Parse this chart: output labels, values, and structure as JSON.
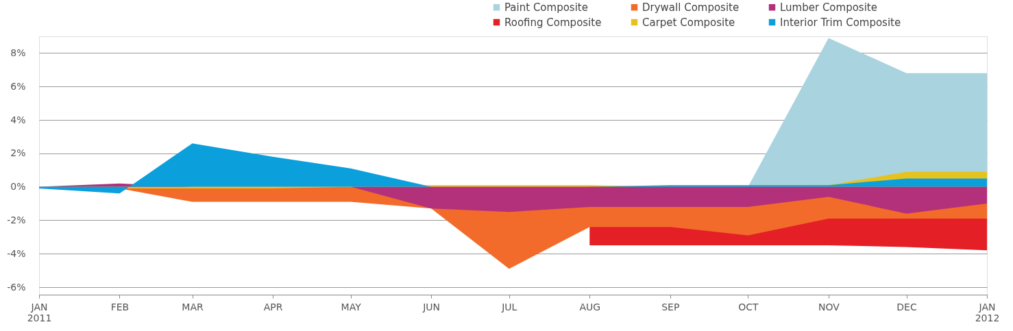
{
  "chart_data": {
    "type": "area",
    "x": [
      "2011-01",
      "2011-02",
      "2011-03",
      "2011-04",
      "2011-05",
      "2011-06",
      "2011-07",
      "2011-08",
      "2011-09",
      "2011-10",
      "2011-11",
      "2011-12",
      "2012-01"
    ],
    "series": [
      {
        "name": "Paint Composite",
        "color": "#a9d3de",
        "values": [
          null,
          null,
          null,
          null,
          null,
          null,
          null,
          null,
          null,
          0,
          8.9,
          6.8,
          6.8
        ]
      },
      {
        "name": "Roofing Composite",
        "color": "#e41f26",
        "values": [
          null,
          null,
          null,
          null,
          null,
          null,
          null,
          -3.5,
          -3.5,
          -3.5,
          -3.5,
          -3.6,
          -3.8
        ]
      },
      {
        "name": "Drywall Composite",
        "color": "#f26b2a",
        "values": [
          -0.1,
          -0.1,
          -0.9,
          -0.9,
          -0.9,
          -1.3,
          -4.9,
          -2.4,
          -2.4,
          -2.9,
          -1.9,
          -1.9,
          -1.9
        ]
      },
      {
        "name": "Carpet Composite",
        "color": "#e6c31c",
        "values": [
          0,
          -0.1,
          -0.1,
          -0.1,
          0,
          0.1,
          0.1,
          0.1,
          0,
          0,
          0.1,
          0.9,
          0.9
        ]
      },
      {
        "name": "Lumber Composite",
        "color": "#b3317b",
        "values": [
          0,
          0.2,
          0,
          0,
          0,
          -1.3,
          -1.5,
          -1.2,
          -1.2,
          -1.2,
          -0.6,
          -1.6,
          -1.0
        ]
      },
      {
        "name": "Interior Trim Composite",
        "color": "#0b9fdc",
        "values": [
          -0.1,
          -0.4,
          2.6,
          1.8,
          1.1,
          0,
          0,
          0,
          0.1,
          0.1,
          0.1,
          0.5,
          0.5
        ]
      }
    ],
    "xlim": [
      "2011-01",
      "2012-01"
    ],
    "xticks": [
      {
        "value": "2011-01",
        "label": "JAN\n2011"
      },
      {
        "value": "2011-02",
        "label": "FEB"
      },
      {
        "value": "2011-03",
        "label": "MAR"
      },
      {
        "value": "2011-04",
        "label": "APR"
      },
      {
        "value": "2011-05",
        "label": "MAY"
      },
      {
        "value": "2011-06",
        "label": "JUN"
      },
      {
        "value": "2011-07",
        "label": "JUL"
      },
      {
        "value": "2011-08",
        "label": "AUG"
      },
      {
        "value": "2011-09",
        "label": "SEP"
      },
      {
        "value": "2011-10",
        "label": "OCT"
      },
      {
        "value": "2011-11",
        "label": "NOV"
      },
      {
        "value": "2011-12",
        "label": "DEC"
      },
      {
        "value": "2012-01",
        "label": "JAN\n2012"
      }
    ],
    "ylim": [
      -6.45,
      9
    ],
    "yticks": [
      {
        "value": -6,
        "label": "-6%"
      },
      {
        "value": -4,
        "label": "-4%"
      },
      {
        "value": -2,
        "label": "-2%"
      },
      {
        "value": 0,
        "label": "0%"
      },
      {
        "value": 2,
        "label": "2%"
      },
      {
        "value": 4,
        "label": "4%"
      },
      {
        "value": 6,
        "label": "6%"
      },
      {
        "value": 8,
        "label": "8%"
      }
    ],
    "grid": "y",
    "legend": "top right"
  }
}
